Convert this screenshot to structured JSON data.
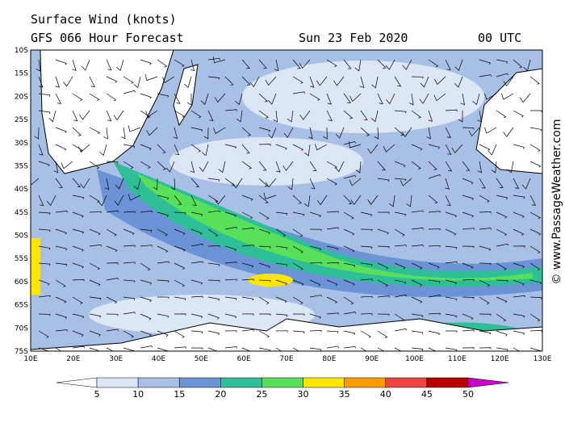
{
  "header": {
    "title": "Surface Wind (knots)",
    "model": "GFS 066 Hour Forecast",
    "date": "Sun 23 Feb 2020",
    "time": "00 UTC"
  },
  "credit": "© www.PassageWeather.com",
  "map": {
    "latitude_labels": [
      "10S",
      "15S",
      "20S",
      "25S",
      "30S",
      "35S",
      "40S",
      "45S",
      "50S",
      "55S",
      "60S",
      "65S",
      "70S",
      "75S"
    ],
    "longitude_labels": [
      "10E",
      "20E",
      "30E",
      "40E",
      "50E",
      "60E",
      "70E",
      "80E",
      "90E",
      "100E",
      "110E",
      "120E",
      "130E"
    ]
  },
  "colorbar": {
    "labels": [
      "5",
      "10",
      "15",
      "20",
      "25",
      "30",
      "35",
      "40",
      "45",
      "50"
    ],
    "colors": [
      "#ffffff",
      "#dce6f4",
      "#a8c0e6",
      "#6b93d6",
      "#2fbf98",
      "#58e05a",
      "#ffe600",
      "#ff9a00",
      "#f04545",
      "#b80000",
      "#cc00cc"
    ]
  }
}
